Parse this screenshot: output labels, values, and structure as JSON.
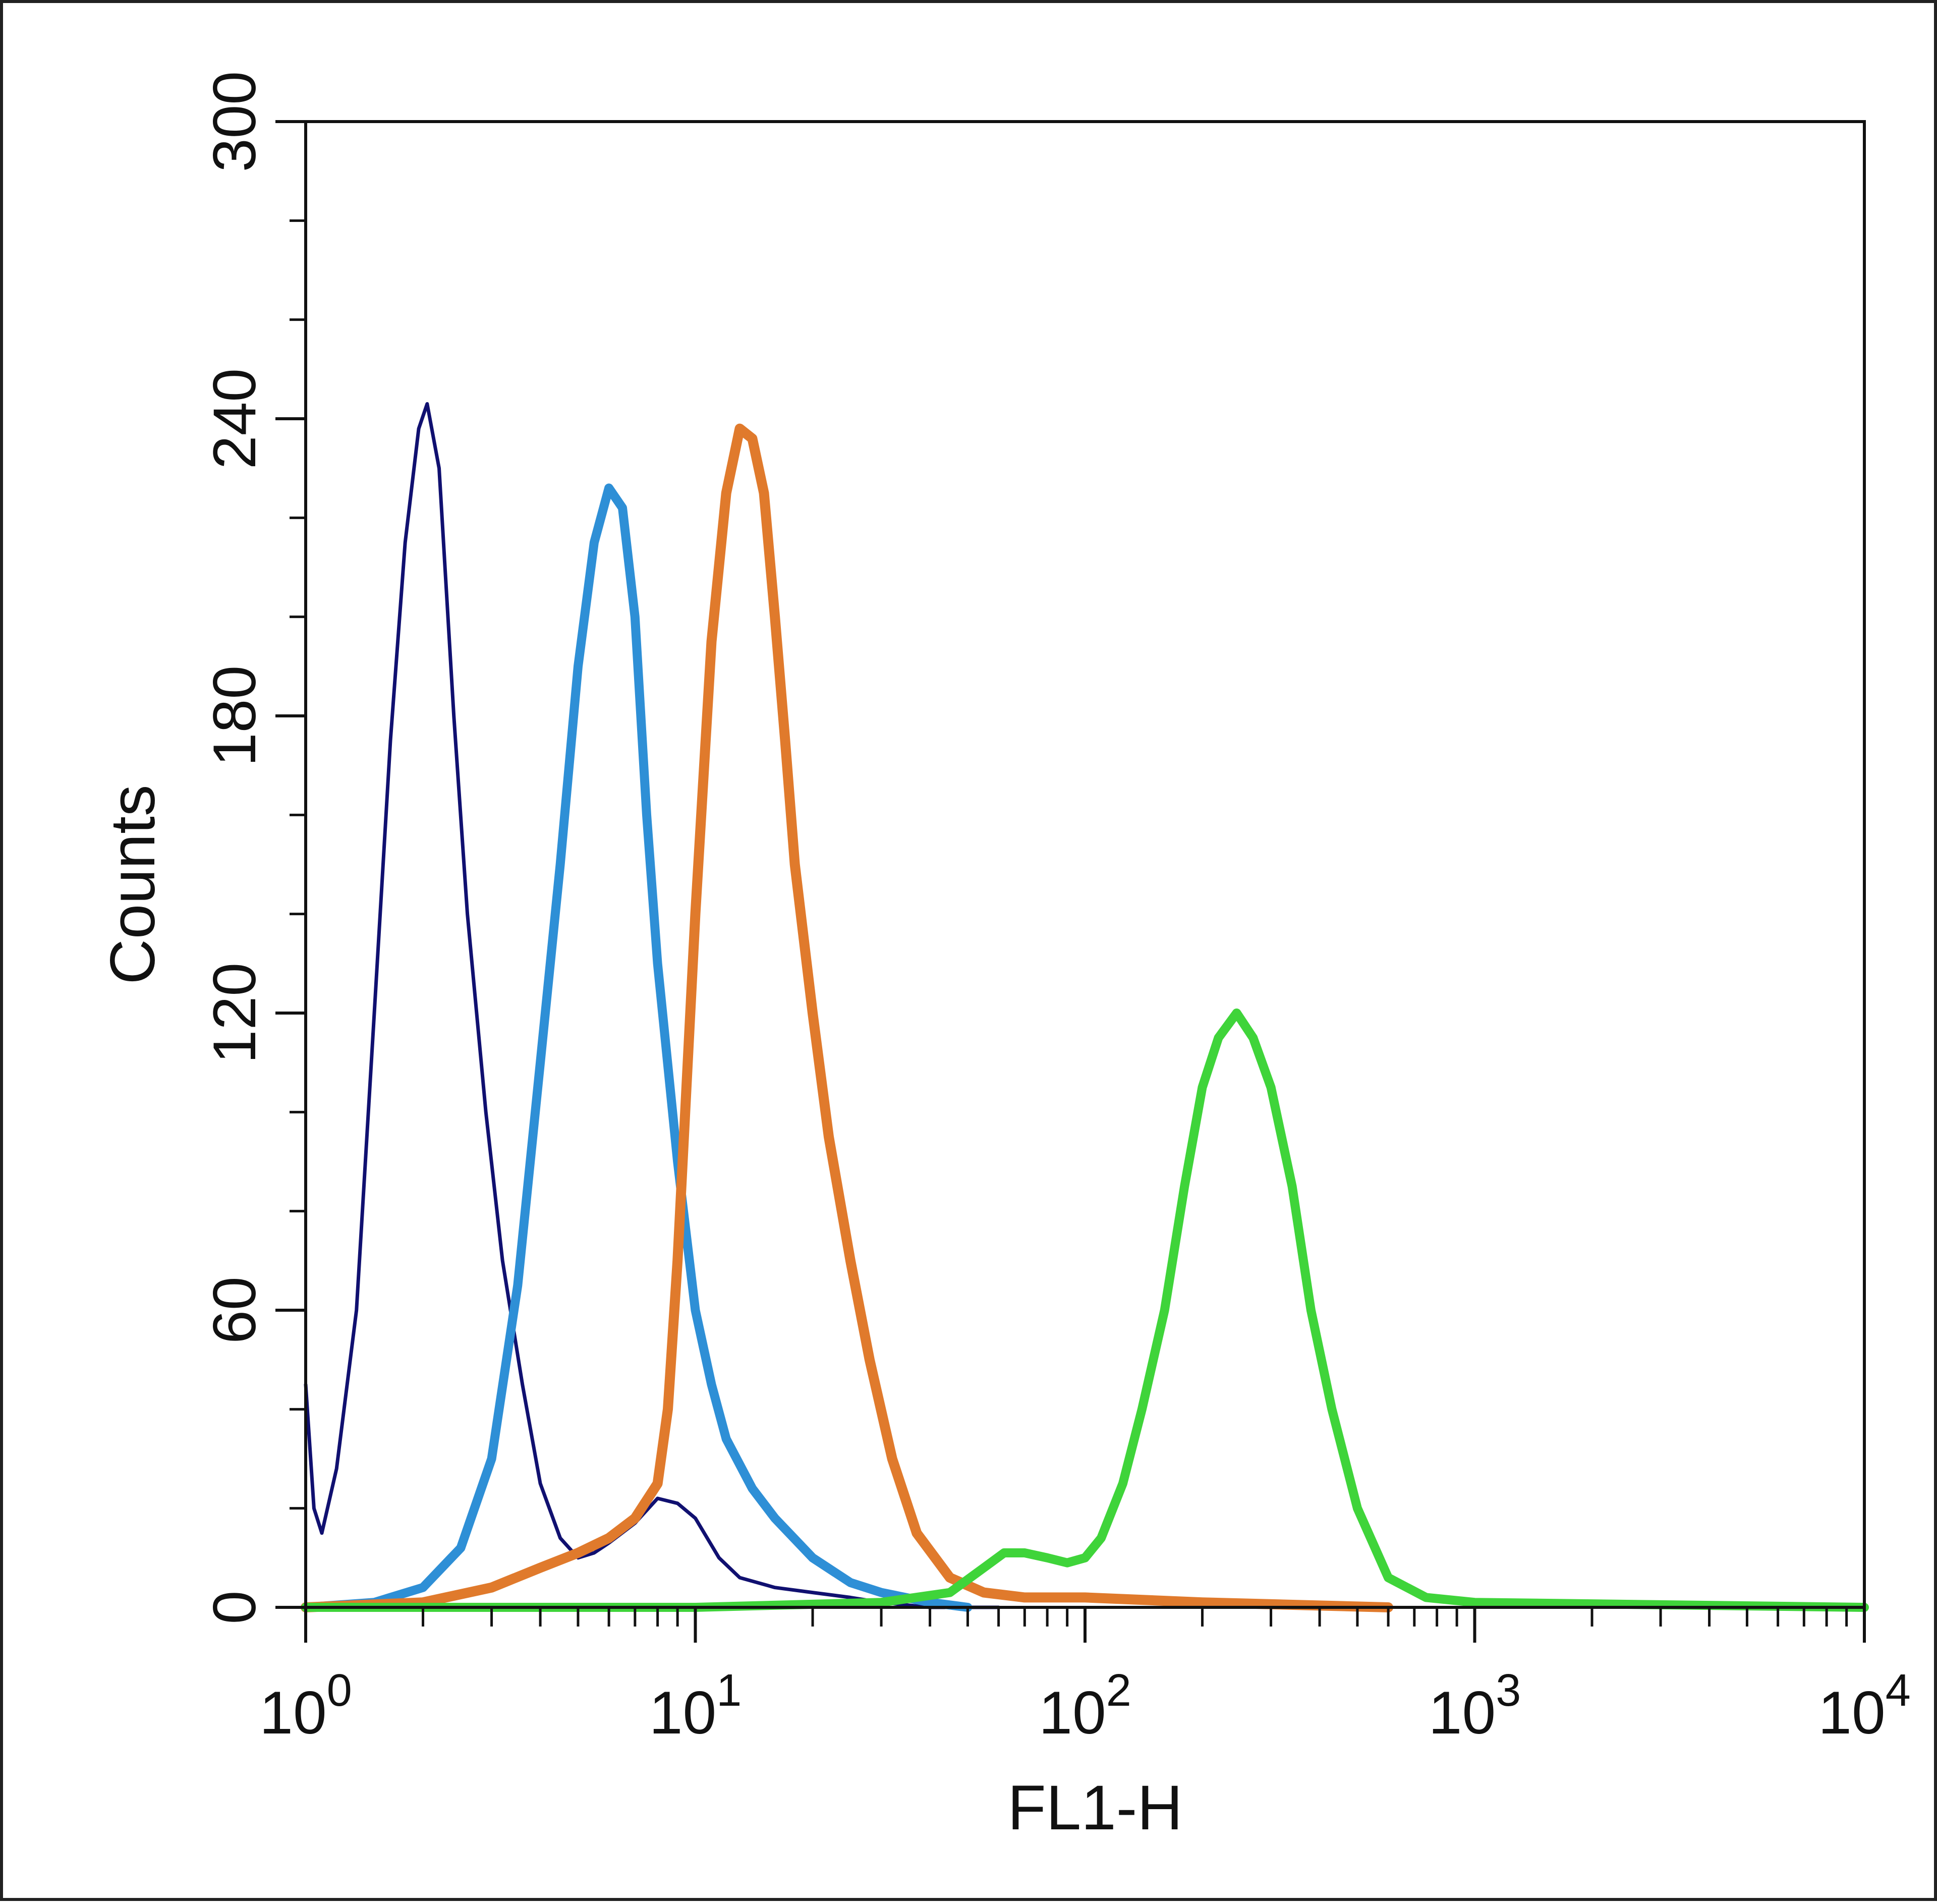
{
  "chart_data": {
    "type": "line",
    "title": "",
    "xlabel": "FL1-H",
    "ylabel": "Counts",
    "xscale": "log",
    "xlim": [
      1,
      10000
    ],
    "ylim": [
      0,
      300
    ],
    "grid": false,
    "legend": "none",
    "x_ticks": [
      {
        "base": "10",
        "exp": "0"
      },
      {
        "base": "10",
        "exp": "1"
      },
      {
        "base": "10",
        "exp": "2"
      },
      {
        "base": "10",
        "exp": "3"
      },
      {
        "base": "10",
        "exp": "4"
      }
    ],
    "y_ticks": [
      "0",
      "60",
      "120",
      "180",
      "240",
      "300"
    ],
    "series": [
      {
        "color": "#101070",
        "x": [
          1.0,
          1.05,
          1.1,
          1.2,
          1.35,
          1.5,
          1.65,
          1.8,
          1.95,
          2.05,
          2.2,
          2.4,
          2.6,
          2.9,
          3.2,
          3.6,
          4.0,
          4.5,
          5.0,
          5.5,
          6.0,
          7.0,
          8.0,
          9.0,
          10.0,
          11.5,
          13.0,
          16.0,
          20.0,
          25.0,
          30.0,
          40.0,
          60.0
        ],
        "y": [
          45,
          20,
          15,
          28,
          60,
          120,
          175,
          215,
          238,
          243,
          230,
          180,
          140,
          100,
          70,
          45,
          25,
          14,
          10,
          11,
          13,
          17,
          22,
          21,
          18,
          10,
          6,
          4,
          3,
          2,
          1,
          0,
          0
        ]
      },
      {
        "color": "#2e8fd6",
        "x": [
          1.0,
          1.5,
          2.0,
          2.5,
          3.0,
          3.5,
          4.0,
          4.5,
          5.0,
          5.5,
          6.0,
          6.5,
          7.0,
          7.5,
          8.0,
          9.0,
          10.0,
          11.0,
          12.0,
          14.0,
          16.0,
          20.0,
          25.0,
          30.0,
          40.0,
          50.0
        ],
        "y": [
          0,
          1,
          4,
          12,
          30,
          65,
          110,
          150,
          190,
          215,
          226,
          222,
          200,
          160,
          130,
          90,
          60,
          45,
          34,
          24,
          18,
          10,
          5,
          3,
          1,
          0
        ]
      },
      {
        "color": "#e07a2c",
        "x": [
          1.0,
          2.0,
          3.0,
          4.0,
          5.0,
          6.0,
          7.0,
          8.0,
          8.5,
          9.0,
          10.0,
          11.0,
          12.0,
          13.0,
          14.0,
          15.0,
          16.0,
          17.0,
          18.0,
          20.0,
          22.0,
          25.0,
          28.0,
          32.0,
          37.0,
          45.0,
          55.0,
          70.0,
          100.0,
          200.0,
          600.0
        ],
        "y": [
          0,
          1,
          4,
          8,
          11,
          14,
          18,
          25,
          40,
          70,
          140,
          195,
          225,
          238,
          236,
          225,
          200,
          175,
          150,
          120,
          95,
          70,
          50,
          30,
          15,
          6,
          3,
          2,
          2,
          1,
          0
        ]
      },
      {
        "color": "#3fd43a",
        "x": [
          1.0,
          10.0,
          30.0,
          45.0,
          55.0,
          62.0,
          70.0,
          80.0,
          90.0,
          100.0,
          110.0,
          125.0,
          140.0,
          160.0,
          180.0,
          200.0,
          220.0,
          245.0,
          270.0,
          300.0,
          340.0,
          380.0,
          430.0,
          500.0,
          600.0,
          750.0,
          1000.0,
          10000.0
        ],
        "y": [
          0,
          0,
          1,
          3,
          8,
          11,
          11,
          10,
          9,
          10,
          14,
          25,
          40,
          60,
          85,
          105,
          115,
          120,
          115,
          105,
          85,
          60,
          40,
          20,
          6,
          2,
          1,
          0
        ]
      }
    ]
  }
}
